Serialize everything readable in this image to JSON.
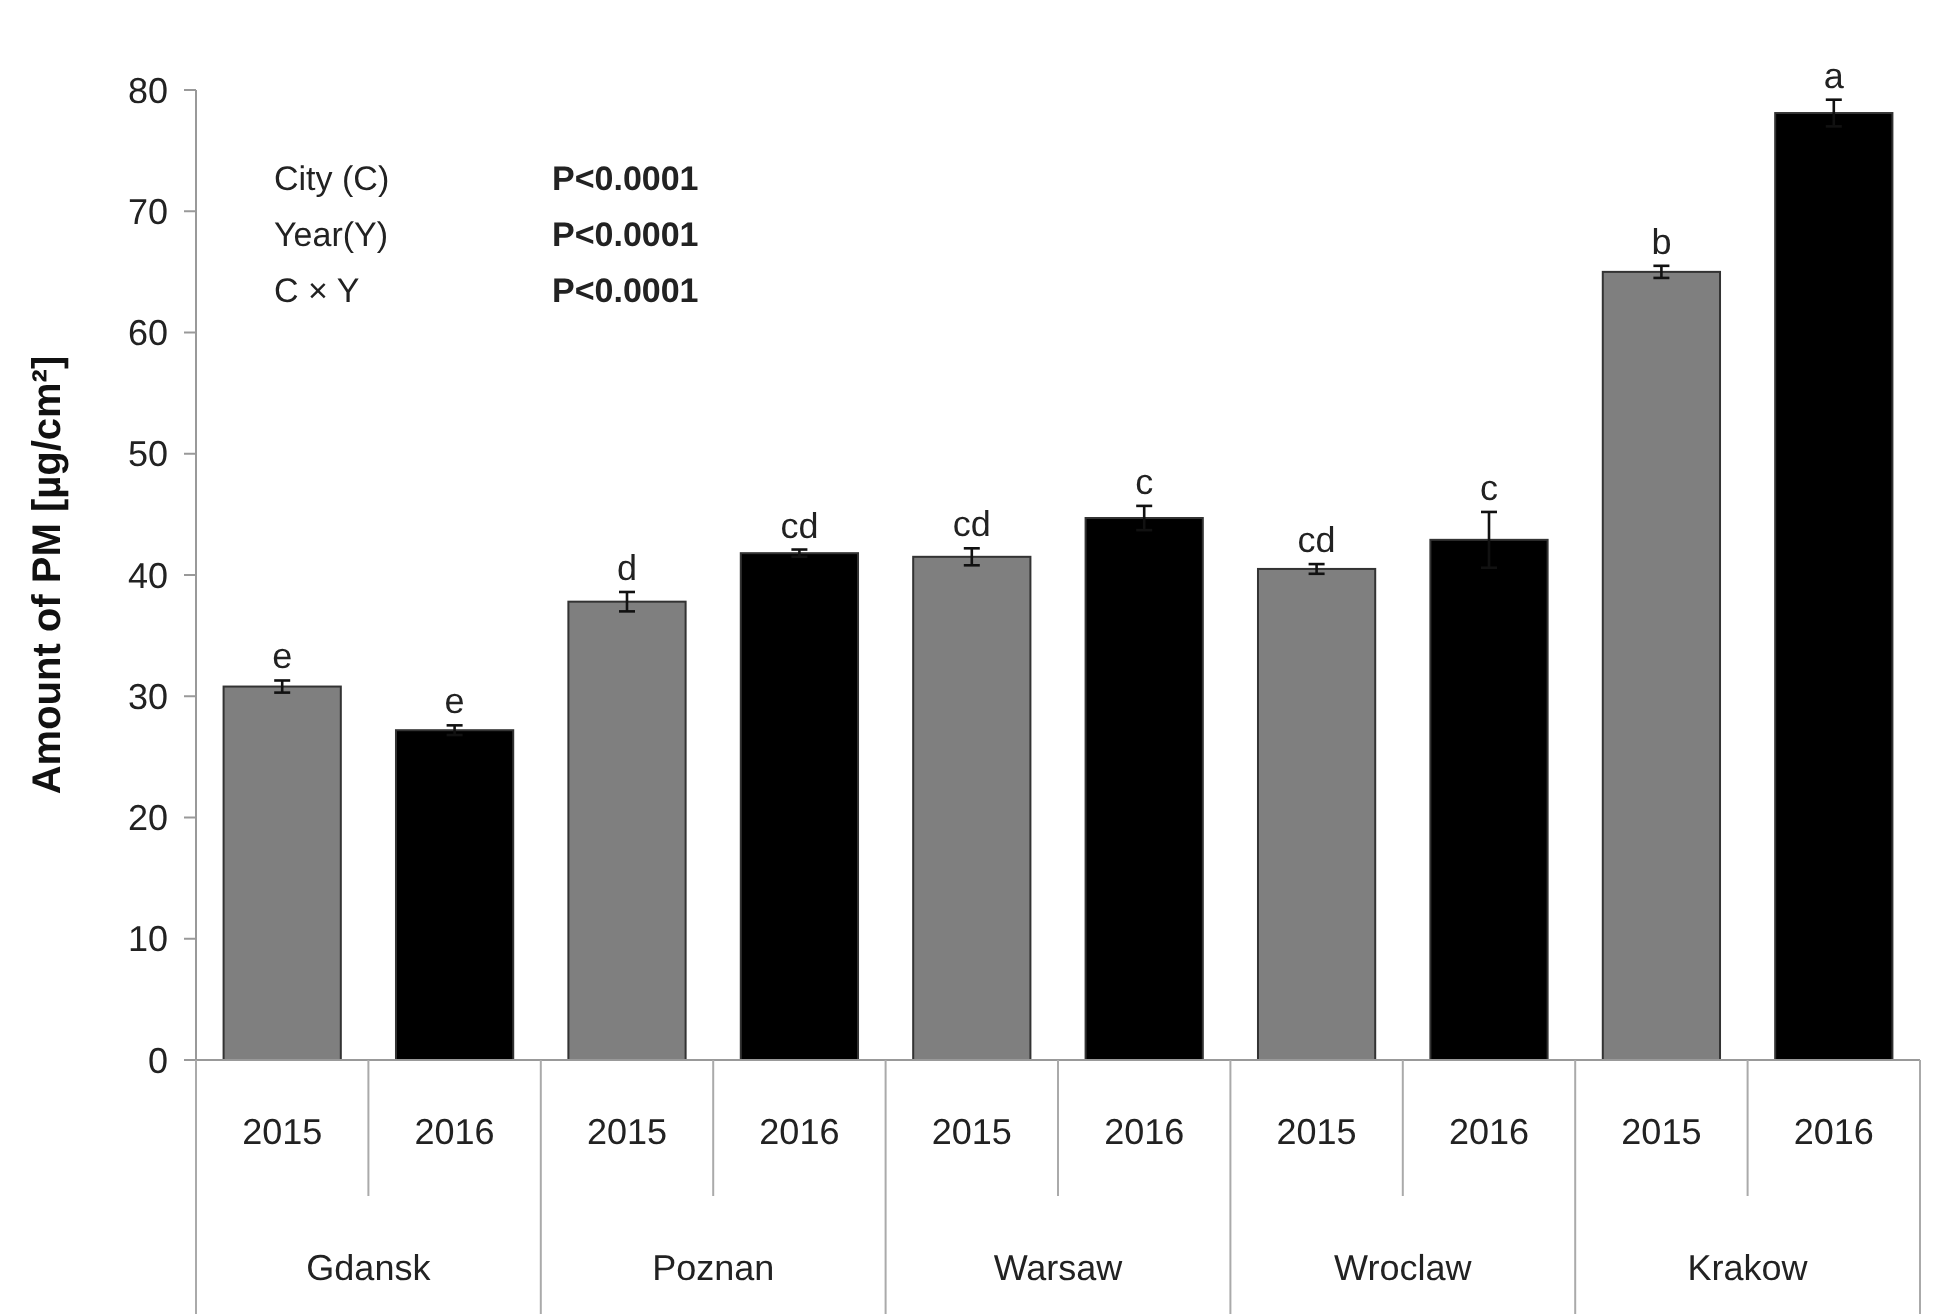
{
  "chart_data": {
    "type": "bar",
    "ylabel": "Amount of PM [µg/cm²]",
    "categories": [
      "2015",
      "2016",
      "2015",
      "2016",
      "2015",
      "2016",
      "2015",
      "2016",
      "2015",
      "2016"
    ],
    "values": [
      30.8,
      27.2,
      37.8,
      41.8,
      41.5,
      44.7,
      40.5,
      42.9,
      65.0,
      78.1
    ],
    "colors": [
      "#7f7f7f",
      "#000000",
      "#7f7f7f",
      "#000000",
      "#7f7f7f",
      "#000000",
      "#7f7f7f",
      "#000000",
      "#7f7f7f",
      "#000000"
    ],
    "errors": [
      0.5,
      0.4,
      0.8,
      0.3,
      0.7,
      1.0,
      0.4,
      2.3,
      0.5,
      1.1
    ],
    "value_labels": [
      "e",
      "e",
      "d",
      "cd",
      "cd",
      "c",
      "cd",
      "c",
      "b",
      "a"
    ],
    "ylim": [
      0,
      80
    ],
    "yticks": [
      0,
      10,
      20,
      30,
      40,
      50,
      60,
      70,
      80
    ],
    "grid": false,
    "annotations": [
      "City (C)",
      "P<0.0001",
      "Year(Y)",
      "P<0.0001",
      "C × Y",
      "P<0.0001",
      "Gdansk",
      "Poznan",
      "Warsaw",
      "Wroclaw",
      "Krakow"
    ]
  }
}
